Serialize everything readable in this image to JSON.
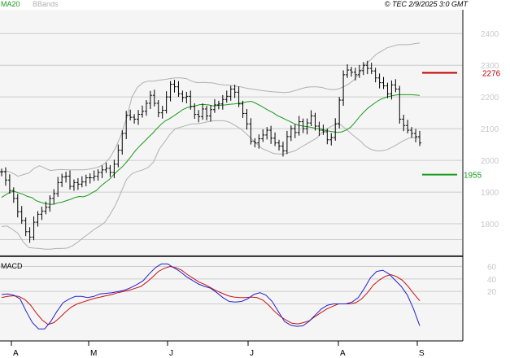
{
  "header": {
    "legend_ma": "MA20",
    "legend_bb": "BBands",
    "copyright": "© TEC 2/9/2025 3:0 GMT"
  },
  "chart_data": [
    {
      "type": "candlestick",
      "x_labels": [
        "A",
        "M",
        "J",
        "J",
        "A",
        "S"
      ],
      "y_ticks": [
        1800,
        1900,
        2000,
        2100,
        2200,
        2300,
        2400
      ],
      "ylim": [
        1700,
        2475
      ],
      "grid": true,
      "colors": {
        "price": "#000000",
        "ma20": "#1a9a1a",
        "bbands": "#b0b0b0",
        "resistance": "#c00000",
        "support": "#1a9a1a",
        "grid": "#cccccc",
        "panel": "#f5f5f5"
      },
      "price": [
        1964,
        1938,
        1905,
        1880,
        1838,
        1810,
        1775,
        1758,
        1805,
        1830,
        1840,
        1852,
        1880,
        1895,
        1930,
        1948,
        1950,
        1918,
        1930,
        1925,
        1932,
        1945,
        1945,
        1950,
        1962,
        1970,
        1975,
        1962,
        1988,
        2032,
        2085,
        2142,
        2136,
        2130,
        2145,
        2155,
        2180,
        2205,
        2180,
        2150,
        2158,
        2200,
        2240,
        2232,
        2210,
        2198,
        2202,
        2170,
        2145,
        2138,
        2162,
        2140,
        2160,
        2175,
        2178,
        2192,
        2202,
        2225,
        2215,
        2178,
        2148,
        2115,
        2060,
        2055,
        2068,
        2080,
        2095,
        2070,
        2055,
        2045,
        2030,
        2075,
        2100,
        2088,
        2122,
        2100,
        2118,
        2140,
        2108,
        2095,
        2090,
        2065,
        2072,
        2115,
        2190,
        2270,
        2285,
        2278,
        2270,
        2283,
        2300,
        2290,
        2282,
        2260,
        2245,
        2235,
        2210,
        2238,
        2225,
        2130,
        2110,
        2095,
        2085,
        2075,
        2055
      ],
      "ma20": [
        1883,
        1892,
        1900,
        1902,
        1897,
        1893,
        1886,
        1883,
        1873,
        1868,
        1864,
        1862,
        1861,
        1866,
        1868,
        1873,
        1877,
        1883,
        1886,
        1885,
        1890,
        1898,
        1905,
        1919,
        1930,
        1940,
        1955,
        1968,
        1980,
        1995,
        2012,
        2030,
        2045,
        2058,
        2072,
        2085,
        2100,
        2114,
        2125,
        2132,
        2141,
        2150,
        2160,
        2166,
        2170,
        2172,
        2176,
        2176,
        2175,
        2172,
        2173,
        2174,
        2175,
        2177,
        2178,
        2180,
        2182,
        2185,
        2186,
        2180,
        2173,
        2165,
        2157,
        2150,
        2141,
        2135,
        2128,
        2122,
        2115,
        2110,
        2108,
        2106,
        2104,
        2100,
        2100,
        2095,
        2092,
        2090,
        2088,
        2090,
        2096,
        2105,
        2120,
        2137,
        2152,
        2165,
        2175,
        2185,
        2193,
        2198,
        2202,
        2205,
        2207,
        2207,
        2207,
        2207,
        2206,
        2205
      ],
      "bb_upper": [
        1965,
        1966,
        1960,
        1950,
        1955,
        1960,
        1975,
        1983,
        1975,
        1968,
        1970,
        1971,
        1970,
        1970,
        1970,
        1970,
        1972,
        1975,
        1980,
        1990,
        2010,
        2040,
        2080,
        2132,
        2200,
        2230,
        2245,
        2250,
        2250,
        2253,
        2255,
        2258,
        2260,
        2260,
        2258,
        2250,
        2245,
        2246,
        2245,
        2244,
        2240,
        2238,
        2237,
        2234,
        2232,
        2228,
        2225,
        2223,
        2220,
        2218,
        2216,
        2215,
        2214,
        2215,
        2220,
        2225,
        2230,
        2232,
        2232,
        2230,
        2225,
        2223,
        2225,
        2232,
        2242,
        2255,
        2278,
        2303,
        2318,
        2335,
        2345,
        2355,
        2360,
        2365,
        2365,
        2365,
        2368,
        2370
      ],
      "bb_lower": [
        1791,
        1793,
        1782,
        1770,
        1742,
        1725,
        1723,
        1722,
        1720,
        1720,
        1722,
        1722,
        1723,
        1730,
        1742,
        1756,
        1768,
        1782,
        1792,
        1805,
        1830,
        1860,
        1900,
        1940,
        1958,
        1965,
        1970,
        1978,
        1995,
        2035,
        2058,
        2082,
        2100,
        2105,
        2110,
        2115,
        2115,
        2118,
        2122,
        2125,
        2125,
        2125,
        2120,
        2110,
        2100,
        2085,
        2068,
        2052,
        2037,
        2030,
        2022,
        2020,
        2020,
        2025,
        2030,
        2040,
        2050,
        2060,
        2070,
        2088,
        2100,
        2110,
        2118,
        2105,
        2090,
        2075,
        2062,
        2045,
        2035,
        2030,
        2030,
        2034,
        2042,
        2052,
        2062,
        2070,
        2072,
        2070
      ],
      "resistance": {
        "value": 2276,
        "label": "2276"
      },
      "support": {
        "value": 1955,
        "label": "1955"
      }
    },
    {
      "type": "line",
      "title": "MACD",
      "y_ticks": [
        20,
        40,
        60
      ],
      "y_tick_labels": [
        "20",
        "40",
        "60"
      ],
      "ylim": [
        -58,
        75
      ],
      "colors": {
        "macd": "#2222cc",
        "signal": "#cc1111"
      },
      "macd": [
        15,
        16,
        14,
        8,
        -12,
        -30,
        -40,
        -40,
        -28,
        -12,
        2,
        8,
        12,
        12,
        10,
        12,
        16,
        17,
        18,
        20,
        22,
        26,
        31,
        37,
        48,
        58,
        64,
        64,
        58,
        52,
        44,
        38,
        32,
        28,
        25,
        18,
        10,
        4,
        3,
        4,
        8,
        15,
        18,
        14,
        4,
        -12,
        -28,
        -34,
        -36,
        -35,
        -28,
        -18,
        -8,
        -2,
        0,
        0,
        0,
        3,
        10,
        25,
        42,
        52,
        54,
        48,
        38,
        28,
        14,
        -8,
        -35
      ],
      "signal": [
        10,
        12,
        13,
        12,
        7,
        -2,
        -15,
        -26,
        -33,
        -30,
        -22,
        -13,
        -5,
        0,
        3,
        6,
        9,
        11,
        13,
        15,
        18,
        20,
        22,
        25,
        28,
        35,
        43,
        52,
        57,
        60,
        58,
        54,
        47,
        41,
        35,
        31,
        26,
        21,
        17,
        13,
        11,
        10,
        10,
        11,
        10,
        6,
        -2,
        -12,
        -20,
        -26,
        -31,
        -32,
        -30,
        -27,
        -20,
        -14,
        -8,
        -4,
        0,
        0,
        0,
        2,
        8,
        18,
        30,
        38,
        44,
        47,
        44,
        38,
        28,
        16,
        5
      ]
    }
  ]
}
